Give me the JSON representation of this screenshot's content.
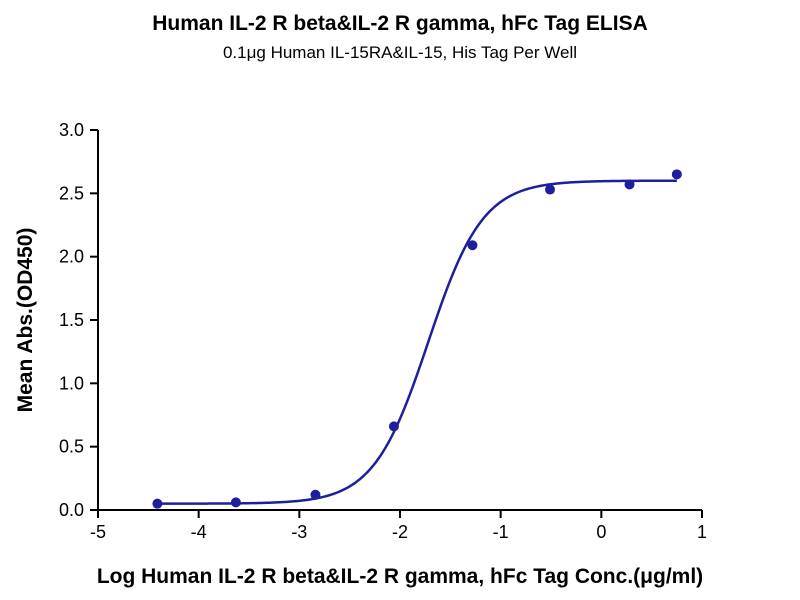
{
  "chart_data": {
    "type": "scatter",
    "title": "Human IL-2 R beta&IL-2 R gamma, hFc Tag ELISA",
    "subtitle": "0.1μg Human IL-15RA&IL-15, His Tag Per Well",
    "xlabel": "Log Human IL-2 R beta&IL-2 R gamma, hFc Tag Conc.(μg/ml)",
    "ylabel": "Mean Abs.(OD450)",
    "xlim": [
      -5,
      1
    ],
    "ylim": [
      0,
      3.0
    ],
    "x_ticks": [
      -5,
      -4,
      -3,
      -2,
      -1,
      0,
      1
    ],
    "x_tick_labels": [
      "-5",
      "-4",
      "-3",
      "-2",
      "-1",
      "0",
      "1"
    ],
    "y_ticks": [
      0,
      0.5,
      1.0,
      1.5,
      2.0,
      2.5,
      3.0
    ],
    "y_tick_labels": [
      "0.0",
      "0.5",
      "1.0",
      "1.5",
      "2.0",
      "2.5",
      "3.0"
    ],
    "grid": false,
    "color": "#1f1f9e",
    "points": {
      "x": [
        -4.41,
        -3.63,
        -2.84,
        -2.06,
        -1.28,
        -0.51,
        0.28,
        0.75
      ],
      "y": [
        0.05,
        0.06,
        0.12,
        0.66,
        2.09,
        2.53,
        2.57,
        2.65
      ]
    },
    "fit": {
      "model": "4PL",
      "bottom": 0.05,
      "top": 2.6,
      "log_ec50": -1.72,
      "hill_slope": 1.6
    }
  }
}
